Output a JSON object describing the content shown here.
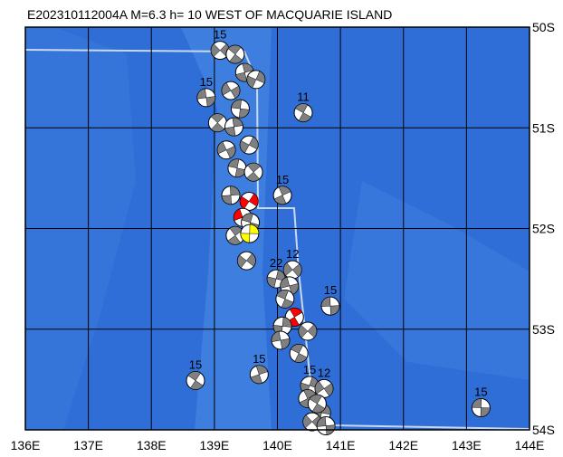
{
  "chart_data": {
    "type": "map",
    "title": "E202310112004A M=6.3 h= 10 WEST OF MACQUARIE ISLAND",
    "xlim": [
      136,
      144
    ],
    "ylim": [
      -54,
      -50
    ],
    "xticks": [
      {
        "value": 136,
        "label": "136E"
      },
      {
        "value": 137,
        "label": "137E"
      },
      {
        "value": 138,
        "label": "138E"
      },
      {
        "value": 139,
        "label": "139E"
      },
      {
        "value": 140,
        "label": "140E"
      },
      {
        "value": 141,
        "label": "141E"
      },
      {
        "value": 142,
        "label": "142E"
      },
      {
        "value": 143,
        "label": "143E"
      },
      {
        "value": 144,
        "label": "144E"
      }
    ],
    "yticks": [
      {
        "value": -50,
        "label": "50S"
      },
      {
        "value": -51,
        "label": "51S"
      },
      {
        "value": -52,
        "label": "52S"
      },
      {
        "value": -53,
        "label": "53S"
      },
      {
        "value": -54,
        "label": "54S"
      }
    ],
    "grid": true,
    "ball_color": "#808080",
    "events": [
      {
        "lon": 139.09,
        "lat": -50.23,
        "depth": 15
      },
      {
        "lon": 138.87,
        "lat": -50.7,
        "depth": 15
      },
      {
        "lon": 140.41,
        "lat": -50.85,
        "depth": 11
      },
      {
        "lon": 140.08,
        "lat": -51.67,
        "depth": 15
      },
      {
        "lon": 139.98,
        "lat": -52.5,
        "depth": 22
      },
      {
        "lon": 140.24,
        "lat": -52.41,
        "depth": 12
      },
      {
        "lon": 140.84,
        "lat": -52.77,
        "depth": 15
      },
      {
        "lon": 138.7,
        "lat": -53.51,
        "depth": 15
      },
      {
        "lon": 139.71,
        "lat": -53.45,
        "depth": 15
      },
      {
        "lon": 140.51,
        "lat": -53.56,
        "depth": 15
      },
      {
        "lon": 140.74,
        "lat": -53.59,
        "depth": 12
      },
      {
        "lon": 143.23,
        "lat": -53.78,
        "depth": 15
      },
      {
        "lon": 139.33,
        "lat": -50.27,
        "depth": null
      },
      {
        "lon": 139.48,
        "lat": -50.45,
        "depth": null
      },
      {
        "lon": 139.66,
        "lat": -50.52,
        "depth": null
      },
      {
        "lon": 139.26,
        "lat": -50.63,
        "depth": null
      },
      {
        "lon": 139.41,
        "lat": -50.81,
        "depth": null
      },
      {
        "lon": 139.05,
        "lat": -50.95,
        "depth": null
      },
      {
        "lon": 139.31,
        "lat": -50.99,
        "depth": null
      },
      {
        "lon": 139.55,
        "lat": -51.17,
        "depth": null
      },
      {
        "lon": 139.19,
        "lat": -51.22,
        "depth": null
      },
      {
        "lon": 139.36,
        "lat": -51.4,
        "depth": null
      },
      {
        "lon": 139.62,
        "lat": -51.44,
        "depth": null
      },
      {
        "lon": 139.26,
        "lat": -51.67,
        "depth": null
      },
      {
        "lon": 139.55,
        "lat": -51.73,
        "depth": null,
        "color": "#ff0000"
      },
      {
        "lon": 139.45,
        "lat": -51.89,
        "depth": null,
        "color": "#ff0000"
      },
      {
        "lon": 139.57,
        "lat": -51.94,
        "depth": null
      },
      {
        "lon": 139.33,
        "lat": -52.07,
        "depth": null
      },
      {
        "lon": 139.56,
        "lat": -52.05,
        "depth": "",
        "color": "#ffff00"
      },
      {
        "lon": 139.51,
        "lat": -52.32,
        "depth": null
      },
      {
        "lon": 140.19,
        "lat": -52.57,
        "depth": null
      },
      {
        "lon": 140.12,
        "lat": -52.7,
        "depth": null
      },
      {
        "lon": 140.27,
        "lat": -52.88,
        "depth": null,
        "color": "#ff0000"
      },
      {
        "lon": 140.08,
        "lat": -52.97,
        "depth": null
      },
      {
        "lon": 140.48,
        "lat": -53.02,
        "depth": null
      },
      {
        "lon": 140.05,
        "lat": -53.11,
        "depth": null
      },
      {
        "lon": 140.34,
        "lat": -53.24,
        "depth": null
      },
      {
        "lon": 140.48,
        "lat": -53.69,
        "depth": null
      },
      {
        "lon": 140.7,
        "lat": -53.83,
        "depth": null
      },
      {
        "lon": 140.55,
        "lat": -53.92,
        "depth": null
      },
      {
        "lon": 140.77,
        "lat": -53.96,
        "depth": null
      },
      {
        "lon": 140.63,
        "lat": -53.74,
        "depth": null
      }
    ]
  }
}
